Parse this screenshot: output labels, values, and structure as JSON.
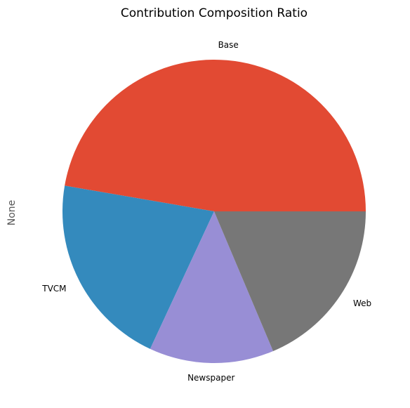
{
  "chart_data": {
    "type": "pie",
    "title": "Contribution Composition Ratio",
    "ylabel": "None",
    "labels": [
      "Base",
      "TVCM",
      "Newspaper",
      "Web"
    ],
    "values": [
      0.4729,
      0.2078,
      0.1329,
      0.1864
    ],
    "colors": [
      "#E24A33",
      "#348ABD",
      "#988ED5",
      "#777777"
    ],
    "start_angle_deg": 0,
    "direction": "counterclockwise"
  }
}
